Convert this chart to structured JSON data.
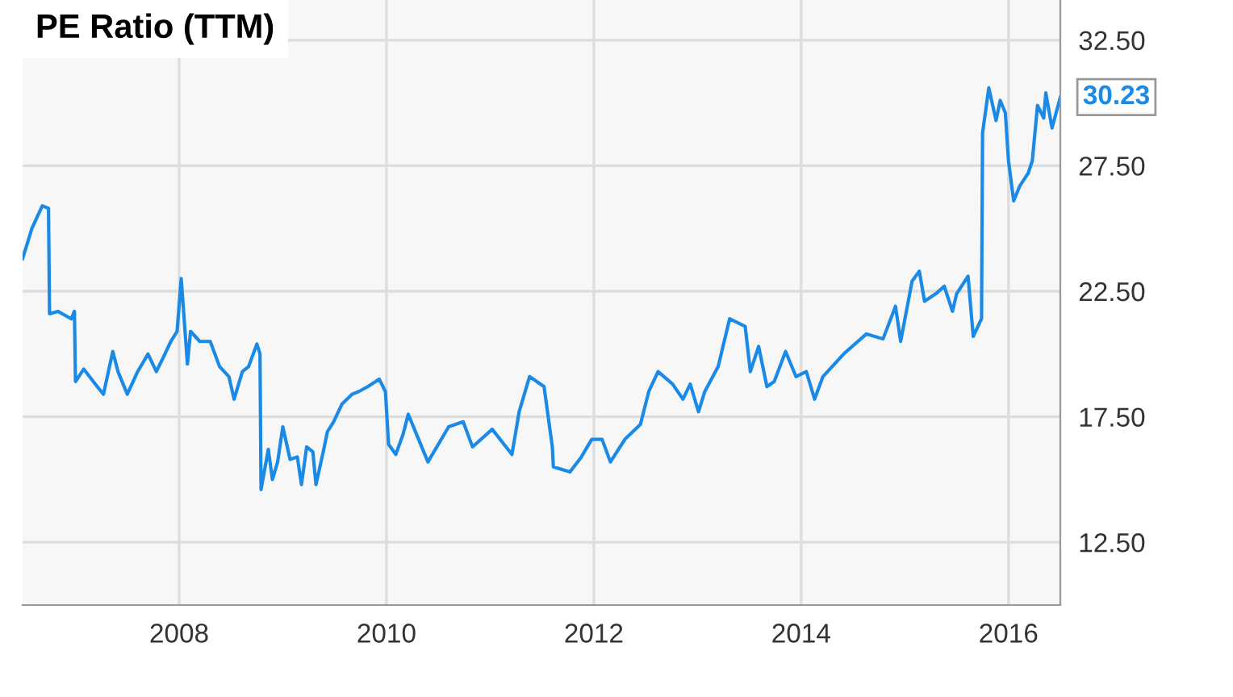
{
  "chart_data": {
    "type": "line",
    "title": "PE Ratio (TTM)",
    "x": [
      2006.49,
      2006.58,
      2006.68,
      2006.74,
      2006.75,
      2006.83,
      2006.96,
      2006.99,
      2007.0,
      2007.08,
      2007.21,
      2007.27,
      2007.36,
      2007.41,
      2007.5,
      2007.6,
      2007.7,
      2007.78,
      2007.84,
      2007.92,
      2007.98,
      2008.02,
      2008.08,
      2008.11,
      2008.2,
      2008.3,
      2008.39,
      2008.48,
      2008.53,
      2008.61,
      2008.67,
      2008.75,
      2008.78,
      2008.79,
      2008.86,
      2008.9,
      2008.95,
      2009.0,
      2009.07,
      2009.14,
      2009.18,
      2009.23,
      2009.29,
      2009.32,
      2009.39,
      2009.43,
      2009.49,
      2009.57,
      2009.67,
      2009.73,
      2009.82,
      2009.93,
      2009.99,
      2010.02,
      2010.09,
      2010.16,
      2010.21,
      2010.29,
      2010.4,
      2010.6,
      2010.74,
      2010.83,
      2011.02,
      2011.21,
      2011.28,
      2011.38,
      2011.52,
      2011.6,
      2011.61,
      2011.77,
      2011.88,
      2011.98,
      2012.08,
      2012.16,
      2012.3,
      2012.45,
      2012.53,
      2012.62,
      2012.76,
      2012.86,
      2012.93,
      2013.01,
      2013.07,
      2013.2,
      2013.31,
      2013.46,
      2013.51,
      2013.59,
      2013.67,
      2013.74,
      2013.85,
      2013.95,
      2014.05,
      2014.13,
      2014.21,
      2014.41,
      2014.63,
      2014.79,
      2014.91,
      2014.96,
      2015.07,
      2015.14,
      2015.19,
      2015.3,
      2015.38,
      2015.46,
      2015.5,
      2015.61,
      2015.66,
      2015.74,
      2015.75,
      2015.81,
      2015.88,
      2015.92,
      2015.97,
      2016.0,
      2016.05,
      2016.11,
      2016.19,
      2016.23,
      2016.28,
      2016.34,
      2016.36,
      2016.42,
      2016.5
    ],
    "series": [
      {
        "color": "#1a8ae6",
        "values": [
          23.8,
          25.0,
          25.9,
          25.8,
          21.6,
          21.7,
          21.4,
          21.7,
          18.9,
          19.4,
          18.7,
          18.4,
          20.1,
          19.3,
          18.4,
          19.3,
          20.0,
          19.3,
          19.8,
          20.5,
          20.9,
          23.0,
          19.6,
          20.9,
          20.5,
          20.5,
          19.5,
          19.1,
          18.2,
          19.3,
          19.5,
          20.4,
          20.0,
          14.6,
          16.2,
          15.0,
          15.7,
          17.1,
          15.8,
          15.9,
          14.8,
          16.3,
          16.1,
          14.8,
          16.1,
          16.9,
          17.3,
          18.0,
          18.4,
          18.5,
          18.7,
          19.0,
          18.5,
          16.4,
          16.0,
          16.8,
          17.6,
          16.8,
          15.7,
          17.1,
          17.3,
          16.3,
          17.0,
          16.0,
          17.7,
          19.1,
          18.7,
          16.3,
          15.5,
          15.3,
          15.9,
          16.6,
          16.6,
          15.7,
          16.6,
          17.2,
          18.5,
          19.3,
          18.8,
          18.2,
          18.8,
          17.7,
          18.5,
          19.5,
          21.4,
          21.1,
          19.3,
          20.3,
          18.7,
          18.9,
          20.1,
          19.1,
          19.3,
          18.2,
          19.1,
          20.0,
          20.8,
          20.6,
          21.9,
          20.5,
          22.9,
          23.3,
          22.1,
          22.4,
          22.7,
          21.7,
          22.4,
          23.1,
          20.7,
          21.4,
          28.8,
          30.6,
          29.3,
          30.1,
          29.6,
          27.7,
          26.1,
          26.7,
          27.2,
          27.7,
          29.9,
          29.4,
          30.4,
          29.0,
          30.23
        ]
      }
    ],
    "annotations": [
      {
        "text": "30.23",
        "x": 2016.5,
        "y": 30.23
      }
    ],
    "xlim": [
      2006.49,
      2016.5
    ],
    "xticks": [
      2008,
      2010,
      2012,
      2014,
      2016
    ],
    "ylim": [
      10,
      34.1
    ],
    "yticks": [
      {
        "value": 12.5,
        "label": "12.50"
      },
      {
        "value": 17.5,
        "label": "17.50"
      },
      {
        "value": 22.5,
        "label": "22.50"
      },
      {
        "value": 27.5,
        "label": "27.50"
      },
      {
        "value": 32.5,
        "label": "32.50"
      }
    ],
    "grid": true,
    "marker": "none",
    "line_style": "solid"
  }
}
